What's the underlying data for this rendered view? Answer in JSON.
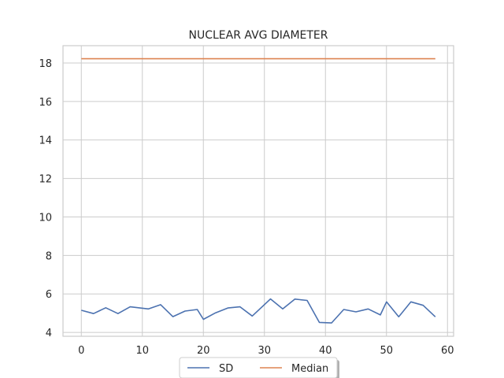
{
  "chart_data": {
    "type": "line",
    "title": "NUCLEAR AVG DIAMETER",
    "xlabel": "",
    "ylabel": "",
    "xlim": [
      -3,
      61
    ],
    "ylim": [
      3.8,
      18.9
    ],
    "xticks": [
      0,
      10,
      20,
      30,
      40,
      50,
      60
    ],
    "yticks": [
      4,
      6,
      8,
      10,
      12,
      14,
      16,
      18
    ],
    "grid": true,
    "legend_position": "bottom-center",
    "x": [
      0,
      2,
      4,
      6,
      8,
      11,
      13,
      15,
      17,
      19,
      20,
      22,
      24,
      26,
      28,
      31,
      33,
      35,
      37,
      39,
      41,
      43,
      45,
      47,
      49,
      50,
      52,
      54,
      56,
      58
    ],
    "series": [
      {
        "name": "SD",
        "color": "#4c72b0",
        "values": [
          5.15,
          4.98,
          5.28,
          4.98,
          5.33,
          5.22,
          5.44,
          4.82,
          5.11,
          5.19,
          4.68,
          5.02,
          5.27,
          5.33,
          4.85,
          5.74,
          5.22,
          5.73,
          5.66,
          4.52,
          4.49,
          5.19,
          5.07,
          5.22,
          4.91,
          5.59,
          4.81,
          5.59,
          5.41,
          4.81
        ]
      },
      {
        "name": "Median",
        "color": "#dd8452",
        "values": [
          18.22,
          18.22,
          18.22,
          18.22,
          18.22,
          18.22,
          18.22,
          18.22,
          18.22,
          18.22,
          18.22,
          18.22,
          18.22,
          18.22,
          18.22,
          18.22,
          18.22,
          18.22,
          18.22,
          18.22,
          18.22,
          18.22,
          18.22,
          18.22,
          18.22,
          18.22,
          18.22,
          18.22,
          18.22,
          18.22
        ]
      }
    ]
  }
}
